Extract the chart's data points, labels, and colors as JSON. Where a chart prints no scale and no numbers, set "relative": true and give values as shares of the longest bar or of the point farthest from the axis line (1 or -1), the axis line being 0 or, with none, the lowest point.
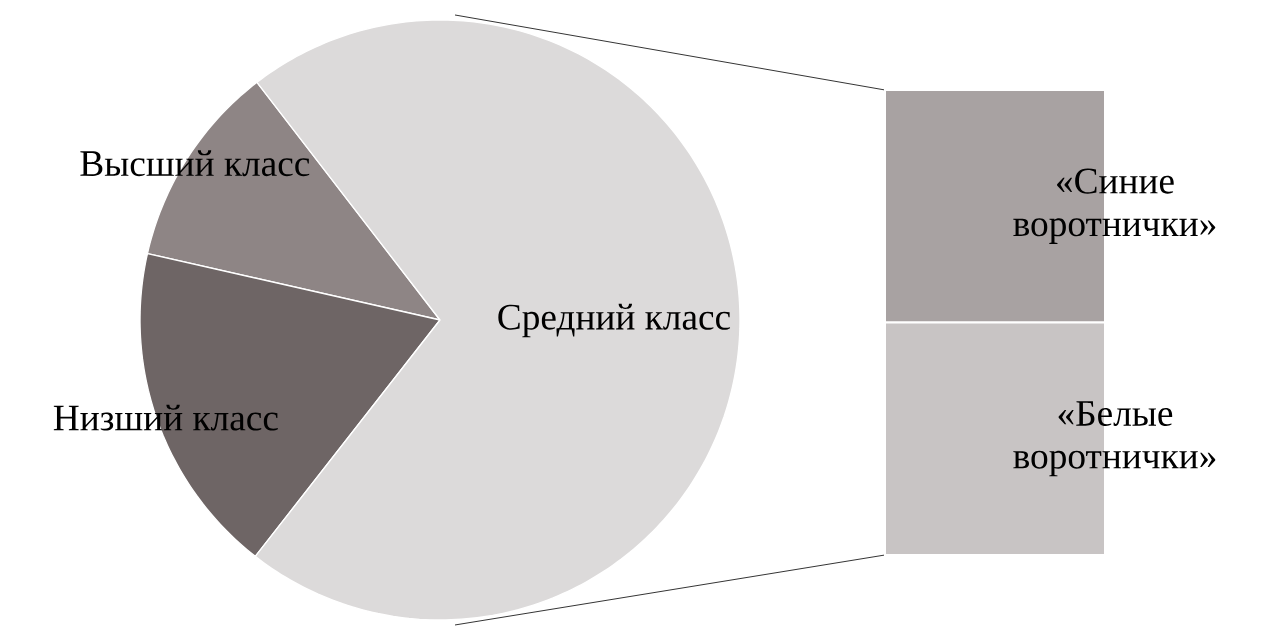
{
  "chart_data": [
    {
      "type": "pie",
      "categories": [
        "Высший класс",
        "Низший класс",
        "Средний класс"
      ],
      "values": [
        11,
        18,
        71
      ],
      "colors": [
        "#8e8585",
        "#6e6565",
        "#dcdada"
      ]
    },
    {
      "type": "bar",
      "stacked": true,
      "relative": true,
      "categories": [
        null
      ],
      "series": [
        {
          "name": "«Белые воротнички»",
          "color": "#c8c4c4",
          "values": [
            0.5
          ]
        },
        {
          "name": "«Синие воротнички»",
          "color": "#a8a2a2",
          "values": [
            0.5
          ]
        }
      ]
    }
  ]
}
